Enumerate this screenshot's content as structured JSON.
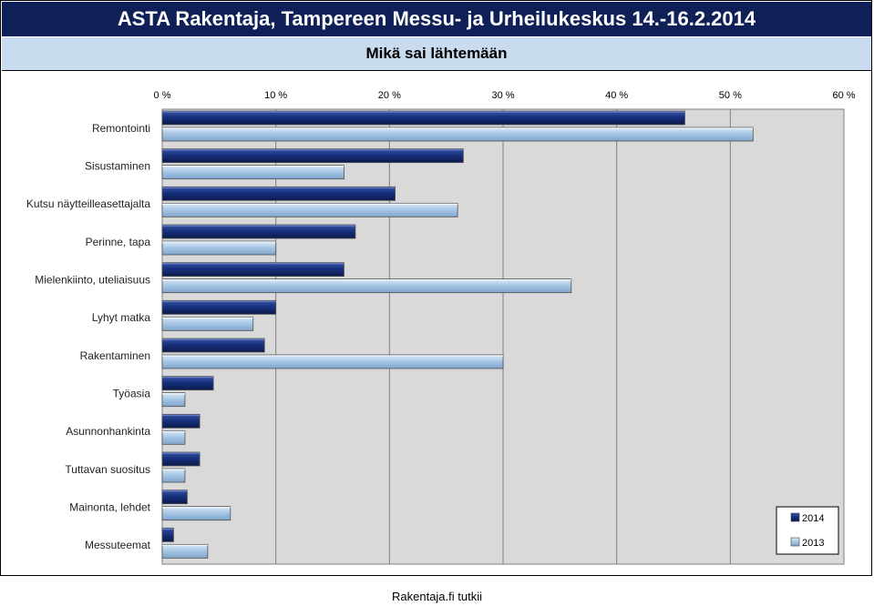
{
  "header": {
    "title": "ASTA Rakentaja, Tampereen Messu- ja Urheilukeskus 14.-16.2.2014"
  },
  "chart_data": {
    "type": "bar",
    "orientation": "horizontal",
    "title": "Mikä sai lähtemään",
    "xlim": [
      0,
      60
    ],
    "xticks": [
      "0 %",
      "10 %",
      "20 %",
      "30 %",
      "40 %",
      "50 %",
      "60 %"
    ],
    "grid": true,
    "legend_position": "bottom-right",
    "categories": [
      "Remontointi",
      "Sisustaminen",
      "Kutsu näytteilleasettajalta",
      "Perinne, tapa",
      "Mielenkiinto, uteliaisuus",
      "Lyhyt matka",
      "Rakentaminen",
      "Työasia",
      "Asunnonhankinta",
      "Tuttavan suositus",
      "Mainonta, lehdet",
      "Messuteemat"
    ],
    "series": [
      {
        "name": "2014",
        "color": "#17307e",
        "values": [
          46,
          26.5,
          20.5,
          17,
          16,
          10,
          9,
          4.5,
          3.3,
          3.3,
          2.2,
          1
        ]
      },
      {
        "name": "2013",
        "color": "#a9c8e6",
        "values": [
          52,
          16,
          26,
          10,
          36,
          8,
          30,
          2,
          2,
          2,
          6,
          4
        ]
      }
    ]
  },
  "footer": {
    "text": "Rakentaja.fi tutkii"
  }
}
